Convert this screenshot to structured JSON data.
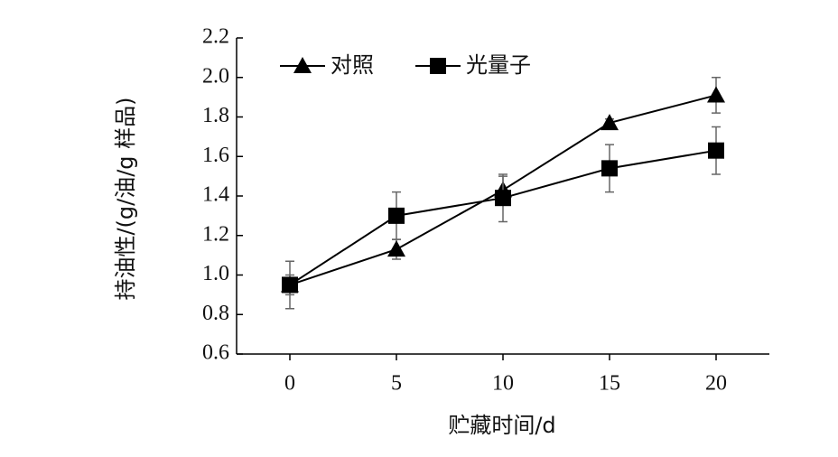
{
  "chart_data": {
    "type": "line",
    "xlabel": "贮藏时间/d",
    "ylabel": "持油性/(g/油/g 样品)",
    "x": [
      0,
      5,
      10,
      15,
      20
    ],
    "xlim": [
      -2.5,
      22.5
    ],
    "xticks": [
      0,
      5,
      10,
      15,
      20
    ],
    "ylim": [
      0.6,
      2.2
    ],
    "yticks": [
      0.6,
      0.8,
      {
        "value": 1.0,
        "label": "1.0"
      },
      1.2,
      1.4,
      1.6,
      1.8,
      {
        "value": 2.0,
        "label": "2.0"
      },
      2.2
    ],
    "legend": "upper left",
    "series": [
      {
        "name": "对照",
        "color": "#000000",
        "marker": "triangle",
        "values": [
          0.95,
          1.13,
          1.43,
          1.77,
          1.91
        ],
        "errors": [
          0.05,
          0.05,
          0.07,
          0.02,
          0.09
        ]
      },
      {
        "name": "光量子",
        "color": "#000000",
        "marker": "square",
        "values": [
          0.95,
          1.3,
          1.39,
          1.54,
          1.63
        ],
        "errors": [
          0.12,
          0.12,
          0.12,
          0.12,
          0.12
        ]
      }
    ]
  }
}
